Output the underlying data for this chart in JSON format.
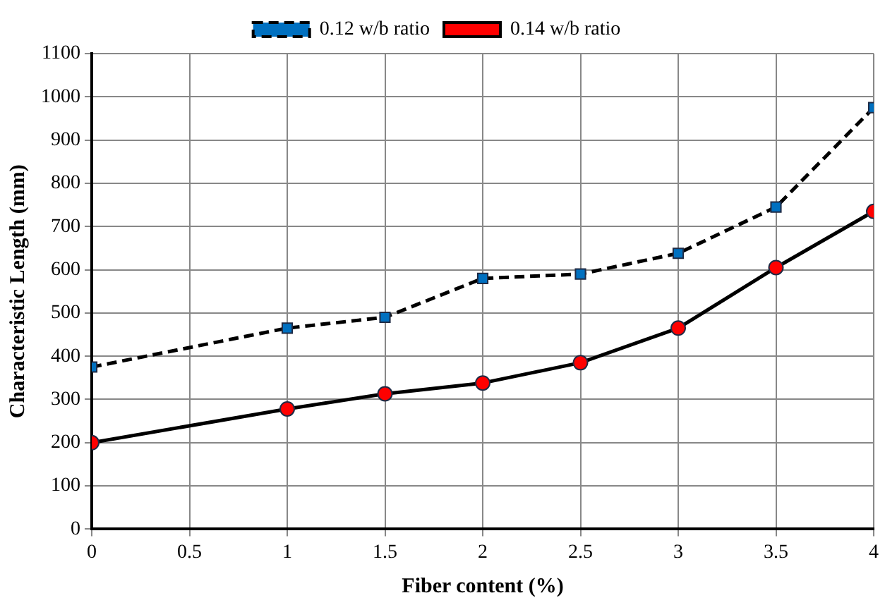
{
  "chart_data": {
    "type": "line",
    "xlabel": "Fiber content (%)",
    "ylabel": "Characteristic Length (mm)",
    "x": [
      0,
      1,
      1.5,
      2,
      2.5,
      3,
      3.5,
      4
    ],
    "series": [
      {
        "name": "0.12 w/b ratio",
        "color": "#0070c0",
        "marker": "square",
        "line_style": "dashed",
        "values": [
          375,
          465,
          490,
          580,
          590,
          638,
          745,
          975
        ]
      },
      {
        "name": "0.14 w/b ratio",
        "color": "#ff0000",
        "marker": "circle",
        "line_style": "solid",
        "values": [
          200,
          278,
          313,
          338,
          385,
          465,
          605,
          735
        ]
      }
    ],
    "xlim": [
      0,
      4
    ],
    "xticks": [
      0,
      0.5,
      1,
      1.5,
      2,
      2.5,
      3,
      3.5,
      4
    ],
    "ylim": [
      0,
      1100
    ],
    "yticks": [
      0,
      100,
      200,
      300,
      400,
      500,
      600,
      700,
      800,
      900,
      1000,
      1100
    ],
    "grid": true,
    "legend": "top"
  }
}
